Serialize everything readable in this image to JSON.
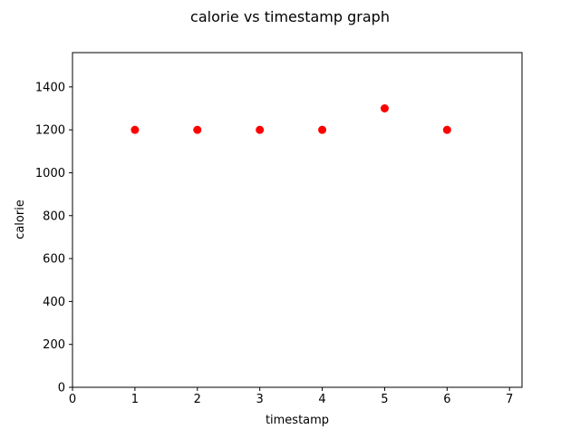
{
  "chart_data": {
    "type": "scatter",
    "title": "calorie vs timestamp graph",
    "xlabel": "timestamp",
    "ylabel": "calorie",
    "xlim": [
      0,
      7.2
    ],
    "ylim": [
      0,
      1560
    ],
    "xticks": [
      0,
      1,
      2,
      3,
      4,
      5,
      6,
      7
    ],
    "yticks": [
      0,
      200,
      400,
      600,
      800,
      1000,
      1200,
      1400
    ],
    "grid": false,
    "marker_color": "#ff0000",
    "series": [
      {
        "x": [
          1,
          2,
          3,
          4,
          5,
          6
        ],
        "y": [
          1200,
          1200,
          1200,
          1200,
          1300,
          1200
        ]
      }
    ]
  }
}
